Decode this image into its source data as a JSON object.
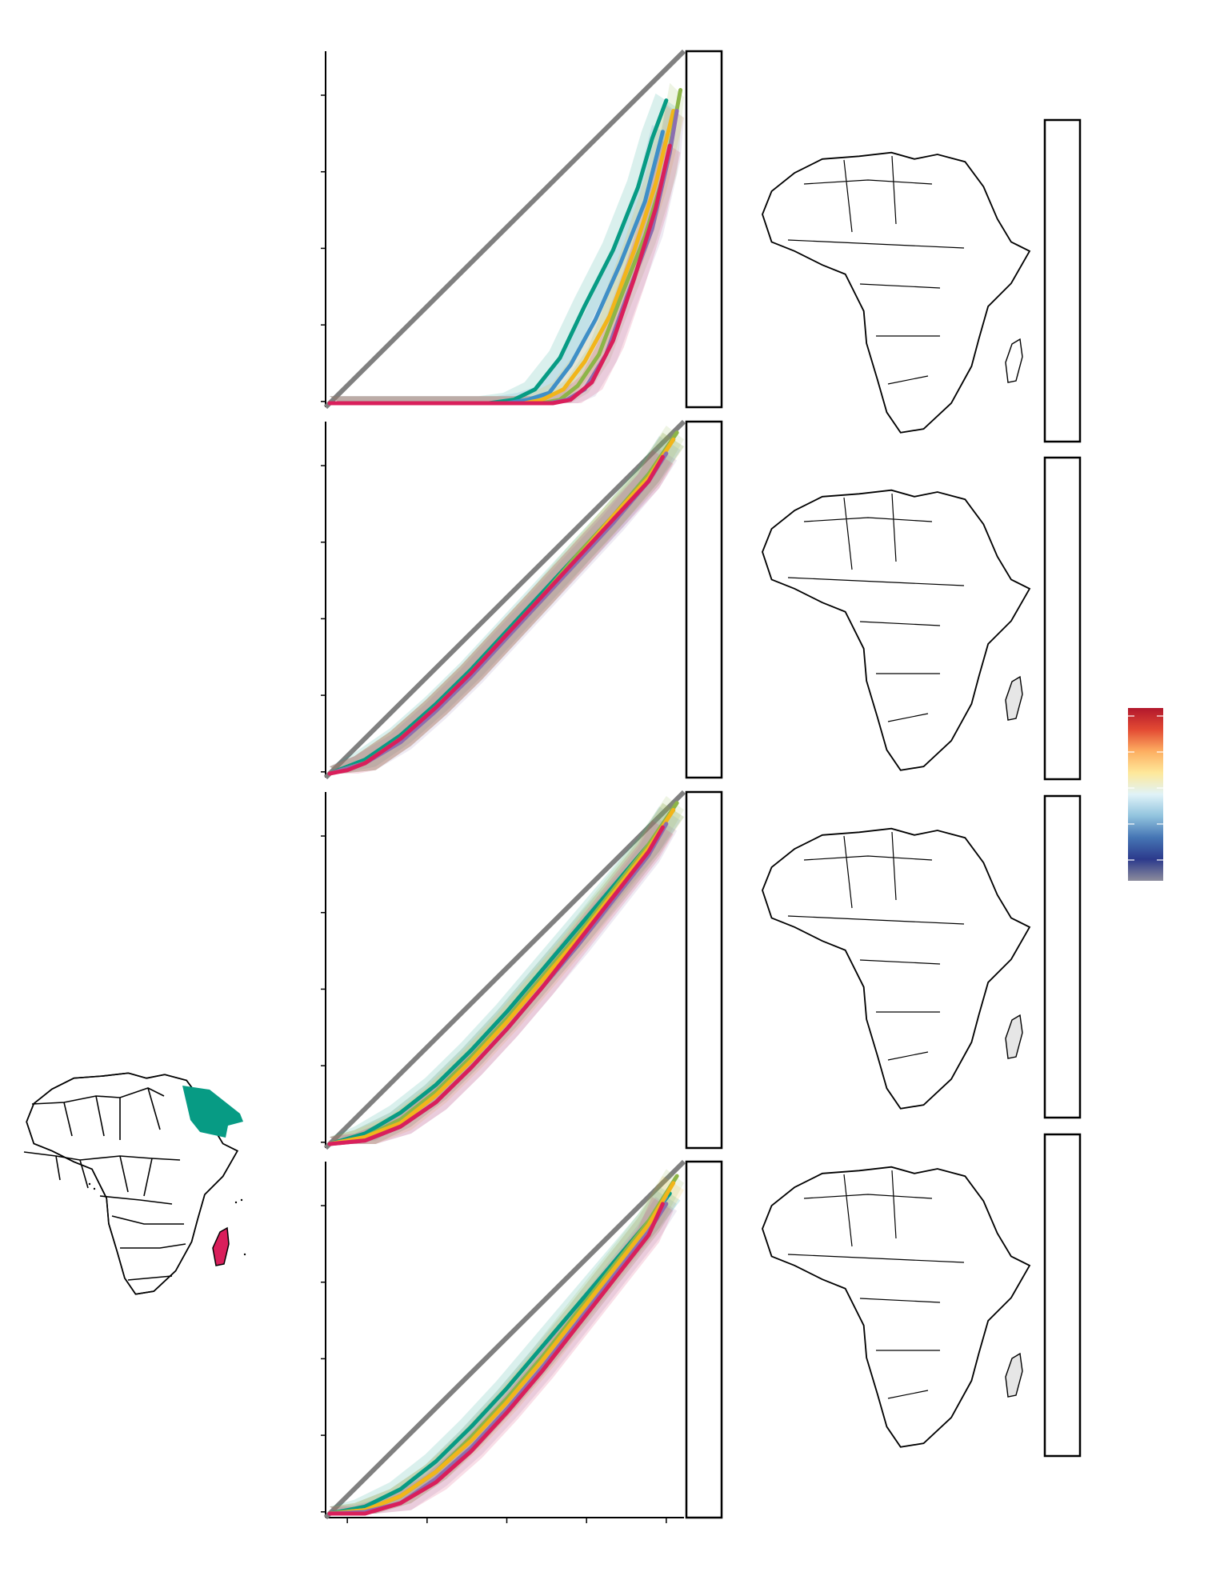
{
  "figure": {
    "background": "#ffffff",
    "colors": {
      "teal": "#079b84",
      "yellow": "#f2b51a",
      "olive": "#8db548",
      "purple": "#8b6fb0",
      "blue": "#3f8fc7",
      "crimson": "#d91f5b",
      "diagonal": "#808080",
      "map_land": "#e6e6e6",
      "map_dots": "#3b4ea0"
    }
  },
  "region_map": {
    "regions": [
      {
        "color_key": "teal"
      },
      {
        "color_key": "yellow"
      },
      {
        "color_key": "olive"
      },
      {
        "color_key": "purple"
      },
      {
        "color_key": "crimson"
      },
      {
        "color_key": "blue"
      }
    ]
  },
  "colorbar": {
    "stops": [
      "#b2172c",
      "#e34a33",
      "#fdae61",
      "#fee89a",
      "#e0f3f8",
      "#91c3de",
      "#4575b4",
      "#2c3a8c",
      "#8c8c9c"
    ]
  },
  "chart_data": [
    {
      "type": "line",
      "panel": 1,
      "xlim": [
        0,
        1
      ],
      "ylim": [
        0,
        1
      ],
      "reference": {
        "name": "",
        "x": [
          0,
          1
        ],
        "y": [
          0,
          1
        ]
      },
      "series": [
        {
          "color_key": "teal",
          "x": [
            0,
            0.45,
            0.52,
            0.58,
            0.65,
            0.72,
            0.8,
            0.87,
            0.91,
            0.95
          ],
          "y": [
            0,
            0,
            0.01,
            0.04,
            0.13,
            0.28,
            0.44,
            0.62,
            0.76,
            0.87
          ]
        },
        {
          "color_key": "blue",
          "x": [
            0,
            0.5,
            0.56,
            0.62,
            0.68,
            0.75,
            0.82,
            0.89,
            0.94
          ],
          "y": [
            0,
            0,
            0.01,
            0.03,
            0.11,
            0.24,
            0.4,
            0.58,
            0.78
          ]
        },
        {
          "color_key": "yellow",
          "x": [
            0,
            0.55,
            0.6,
            0.66,
            0.72,
            0.79,
            0.86,
            0.92,
            0.97
          ],
          "y": [
            0,
            0,
            0.01,
            0.04,
            0.12,
            0.25,
            0.44,
            0.63,
            0.84
          ]
        },
        {
          "color_key": "olive",
          "x": [
            0,
            0.6,
            0.65,
            0.7,
            0.76,
            0.82,
            0.89,
            0.95,
            0.99
          ],
          "y": [
            0,
            0,
            0.01,
            0.05,
            0.14,
            0.3,
            0.48,
            0.68,
            0.9
          ]
        },
        {
          "color_key": "purple",
          "x": [
            0,
            0.62,
            0.67,
            0.72,
            0.78,
            0.84,
            0.91,
            0.96,
            0.98
          ],
          "y": [
            0,
            0,
            0.01,
            0.04,
            0.14,
            0.31,
            0.5,
            0.72,
            0.84
          ]
        },
        {
          "color_key": "crimson",
          "x": [
            0,
            0.63,
            0.68,
            0.74,
            0.8,
            0.86,
            0.92,
            0.96
          ],
          "y": [
            0,
            0,
            0.01,
            0.06,
            0.18,
            0.36,
            0.56,
            0.74
          ]
        }
      ]
    },
    {
      "type": "line",
      "panel": 2,
      "xlim": [
        0,
        1
      ],
      "ylim": [
        0,
        1
      ],
      "reference": {
        "name": "",
        "x": [
          0,
          1
        ],
        "y": [
          0,
          1
        ]
      },
      "series": [
        {
          "color_key": "teal",
          "x": [
            0,
            0.1,
            0.2,
            0.3,
            0.4,
            0.5,
            0.6,
            0.7,
            0.8,
            0.9,
            0.97
          ],
          "y": [
            0,
            0.04,
            0.11,
            0.2,
            0.3,
            0.41,
            0.52,
            0.63,
            0.74,
            0.86,
            0.96
          ]
        },
        {
          "color_key": "blue",
          "x": [
            0,
            0.1,
            0.2,
            0.3,
            0.4,
            0.5,
            0.6,
            0.7,
            0.8,
            0.9,
            0.96
          ],
          "y": [
            0,
            0.03,
            0.1,
            0.19,
            0.29,
            0.4,
            0.51,
            0.62,
            0.73,
            0.85,
            0.95
          ]
        },
        {
          "color_key": "olive",
          "x": [
            0,
            0.1,
            0.2,
            0.3,
            0.4,
            0.5,
            0.6,
            0.7,
            0.8,
            0.9,
            0.98
          ],
          "y": [
            0,
            0.03,
            0.1,
            0.19,
            0.29,
            0.4,
            0.51,
            0.63,
            0.74,
            0.86,
            0.98
          ]
        },
        {
          "color_key": "yellow",
          "x": [
            0,
            0.1,
            0.2,
            0.3,
            0.4,
            0.5,
            0.6,
            0.7,
            0.8,
            0.9,
            0.97
          ],
          "y": [
            0,
            0.03,
            0.1,
            0.19,
            0.29,
            0.4,
            0.51,
            0.62,
            0.74,
            0.85,
            0.96
          ]
        },
        {
          "color_key": "purple",
          "x": [
            0,
            0.1,
            0.2,
            0.3,
            0.4,
            0.5,
            0.6,
            0.7,
            0.8,
            0.9,
            0.95
          ],
          "y": [
            0,
            0.03,
            0.09,
            0.18,
            0.28,
            0.39,
            0.5,
            0.61,
            0.72,
            0.84,
            0.92
          ]
        },
        {
          "color_key": "crimson",
          "x": [
            0,
            0.05,
            0.1,
            0.2,
            0.3,
            0.4,
            0.5,
            0.6,
            0.7,
            0.8,
            0.9,
            0.94
          ],
          "y": [
            0,
            0.01,
            0.03,
            0.1,
            0.19,
            0.29,
            0.4,
            0.51,
            0.62,
            0.73,
            0.84,
            0.91
          ]
        }
      ]
    },
    {
      "type": "line",
      "panel": 3,
      "xlim": [
        0,
        1
      ],
      "ylim": [
        0,
        1
      ],
      "reference": {
        "name": "",
        "x": [
          0,
          1
        ],
        "y": [
          0,
          1
        ]
      },
      "series": [
        {
          "color_key": "teal",
          "x": [
            0,
            0.1,
            0.2,
            0.3,
            0.4,
            0.5,
            0.6,
            0.7,
            0.8,
            0.9,
            0.97
          ],
          "y": [
            0,
            0.03,
            0.09,
            0.17,
            0.27,
            0.38,
            0.5,
            0.62,
            0.74,
            0.86,
            0.96
          ]
        },
        {
          "color_key": "blue",
          "x": [
            0,
            0.1,
            0.2,
            0.3,
            0.4,
            0.5,
            0.6,
            0.7,
            0.8,
            0.9,
            0.96
          ],
          "y": [
            0,
            0.02,
            0.07,
            0.15,
            0.25,
            0.36,
            0.48,
            0.6,
            0.72,
            0.85,
            0.95
          ]
        },
        {
          "color_key": "olive",
          "x": [
            0,
            0.1,
            0.2,
            0.3,
            0.4,
            0.5,
            0.6,
            0.7,
            0.8,
            0.9,
            0.98
          ],
          "y": [
            0,
            0.02,
            0.07,
            0.15,
            0.25,
            0.36,
            0.48,
            0.6,
            0.73,
            0.86,
            0.98
          ]
        },
        {
          "color_key": "yellow",
          "x": [
            0,
            0.1,
            0.2,
            0.3,
            0.4,
            0.5,
            0.6,
            0.7,
            0.8,
            0.9,
            0.97
          ],
          "y": [
            0,
            0.02,
            0.06,
            0.14,
            0.24,
            0.35,
            0.47,
            0.59,
            0.72,
            0.85,
            0.96
          ]
        },
        {
          "color_key": "purple",
          "x": [
            0,
            0.1,
            0.2,
            0.3,
            0.4,
            0.5,
            0.6,
            0.7,
            0.8,
            0.9,
            0.95
          ],
          "y": [
            0,
            0.01,
            0.05,
            0.12,
            0.22,
            0.33,
            0.45,
            0.57,
            0.7,
            0.83,
            0.92
          ]
        },
        {
          "color_key": "crimson",
          "x": [
            0,
            0.05,
            0.1,
            0.2,
            0.3,
            0.4,
            0.5,
            0.6,
            0.7,
            0.8,
            0.9,
            0.94
          ],
          "y": [
            0,
            0.005,
            0.01,
            0.05,
            0.12,
            0.22,
            0.33,
            0.45,
            0.58,
            0.71,
            0.84,
            0.91
          ]
        }
      ]
    },
    {
      "type": "line",
      "panel": 4,
      "xlim": [
        0,
        1
      ],
      "ylim": [
        0,
        1
      ],
      "reference": {
        "name": "",
        "x": [
          0,
          1
        ],
        "y": [
          0,
          1
        ]
      },
      "series": [
        {
          "color_key": "teal",
          "x": [
            0,
            0.1,
            0.2,
            0.3,
            0.4,
            0.5,
            0.6,
            0.7,
            0.8,
            0.9,
            0.96
          ],
          "y": [
            0,
            0.02,
            0.07,
            0.15,
            0.25,
            0.36,
            0.48,
            0.6,
            0.72,
            0.84,
            0.92
          ]
        },
        {
          "color_key": "blue",
          "x": [
            0,
            0.1,
            0.2,
            0.3,
            0.4,
            0.5,
            0.6,
            0.7,
            0.8,
            0.9,
            0.95
          ],
          "y": [
            0,
            0.01,
            0.05,
            0.12,
            0.22,
            0.33,
            0.45,
            0.57,
            0.7,
            0.83,
            0.91
          ]
        },
        {
          "color_key": "olive",
          "x": [
            0,
            0.1,
            0.2,
            0.3,
            0.4,
            0.5,
            0.6,
            0.7,
            0.8,
            0.9,
            0.98
          ],
          "y": [
            0,
            0.01,
            0.05,
            0.12,
            0.22,
            0.33,
            0.45,
            0.58,
            0.71,
            0.84,
            0.97
          ]
        },
        {
          "color_key": "yellow",
          "x": [
            0,
            0.1,
            0.2,
            0.3,
            0.4,
            0.5,
            0.6,
            0.7,
            0.8,
            0.9,
            0.97
          ],
          "y": [
            0,
            0.01,
            0.05,
            0.12,
            0.21,
            0.32,
            0.44,
            0.57,
            0.7,
            0.83,
            0.95
          ]
        },
        {
          "color_key": "purple",
          "x": [
            0,
            0.1,
            0.2,
            0.3,
            0.4,
            0.5,
            0.6,
            0.7,
            0.8,
            0.9,
            0.95
          ],
          "y": [
            0,
            0.005,
            0.03,
            0.1,
            0.19,
            0.3,
            0.42,
            0.55,
            0.68,
            0.81,
            0.89
          ]
        },
        {
          "color_key": "crimson",
          "x": [
            0,
            0.1,
            0.2,
            0.3,
            0.4,
            0.5,
            0.6,
            0.7,
            0.8,
            0.9,
            0.94
          ],
          "y": [
            0,
            0.0,
            0.03,
            0.09,
            0.18,
            0.29,
            0.41,
            0.54,
            0.67,
            0.8,
            0.89
          ]
        }
      ]
    }
  ]
}
